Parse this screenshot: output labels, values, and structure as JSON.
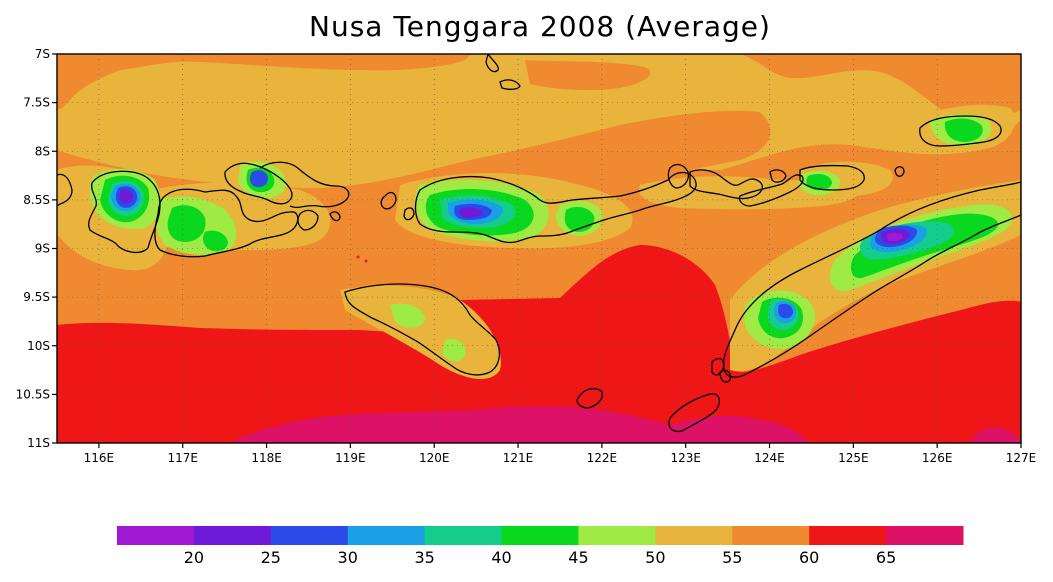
{
  "title": "Nusa Tenggara 2008 (Average)",
  "map": {
    "extent": {
      "lon": [
        115.5,
        127.0
      ],
      "lat": [
        -11.0,
        -7.0
      ]
    },
    "lat_ticks": [
      {
        "value": -7.0,
        "label": "7S"
      },
      {
        "value": -7.5,
        "label": "7.5S"
      },
      {
        "value": -8.0,
        "label": "8S"
      },
      {
        "value": -8.5,
        "label": "8.5S"
      },
      {
        "value": -9.0,
        "label": "9S"
      },
      {
        "value": -9.5,
        "label": "9.5S"
      },
      {
        "value": -10.0,
        "label": "10S"
      },
      {
        "value": -10.5,
        "label": "10.5S"
      },
      {
        "value": -11.0,
        "label": "11S"
      }
    ],
    "lon_ticks": [
      {
        "value": 116,
        "label": "116E"
      },
      {
        "value": 117,
        "label": "117E"
      },
      {
        "value": 118,
        "label": "118E"
      },
      {
        "value": 119,
        "label": "119E"
      },
      {
        "value": 120,
        "label": "120E"
      },
      {
        "value": 121,
        "label": "121E"
      },
      {
        "value": 122,
        "label": "122E"
      },
      {
        "value": 123,
        "label": "123E"
      },
      {
        "value": 124,
        "label": "124E"
      },
      {
        "value": 125,
        "label": "125E"
      },
      {
        "value": 126,
        "label": "126E"
      },
      {
        "value": 127,
        "label": "127E"
      }
    ],
    "grid": true,
    "grid_style": "dotted"
  },
  "colorbar": {
    "colors": [
      "#a01ad6",
      "#6e1ad8",
      "#2b4ae8",
      "#19a0e6",
      "#14cc8c",
      "#0ad81e",
      "#a0ea46",
      "#e8b43c",
      "#ef8a30",
      "#ee1616",
      "#dd1166"
    ],
    "labels": [
      "20",
      "25",
      "30",
      "35",
      "40",
      "45",
      "50",
      "55",
      "60",
      "65"
    ]
  },
  "palette": {
    "bg": "#e8b43c",
    "orange": "#ef8a30",
    "red": "#ee1616",
    "magenta": "#dd1166",
    "lightgreen": "#a0ea46",
    "green": "#0ad81e",
    "teal": "#14cc8c",
    "cyan": "#19a0e6",
    "blue": "#2b4ae8",
    "purple": "#6e1ad8",
    "violet": "#a01ad6",
    "coast": "#000000"
  }
}
